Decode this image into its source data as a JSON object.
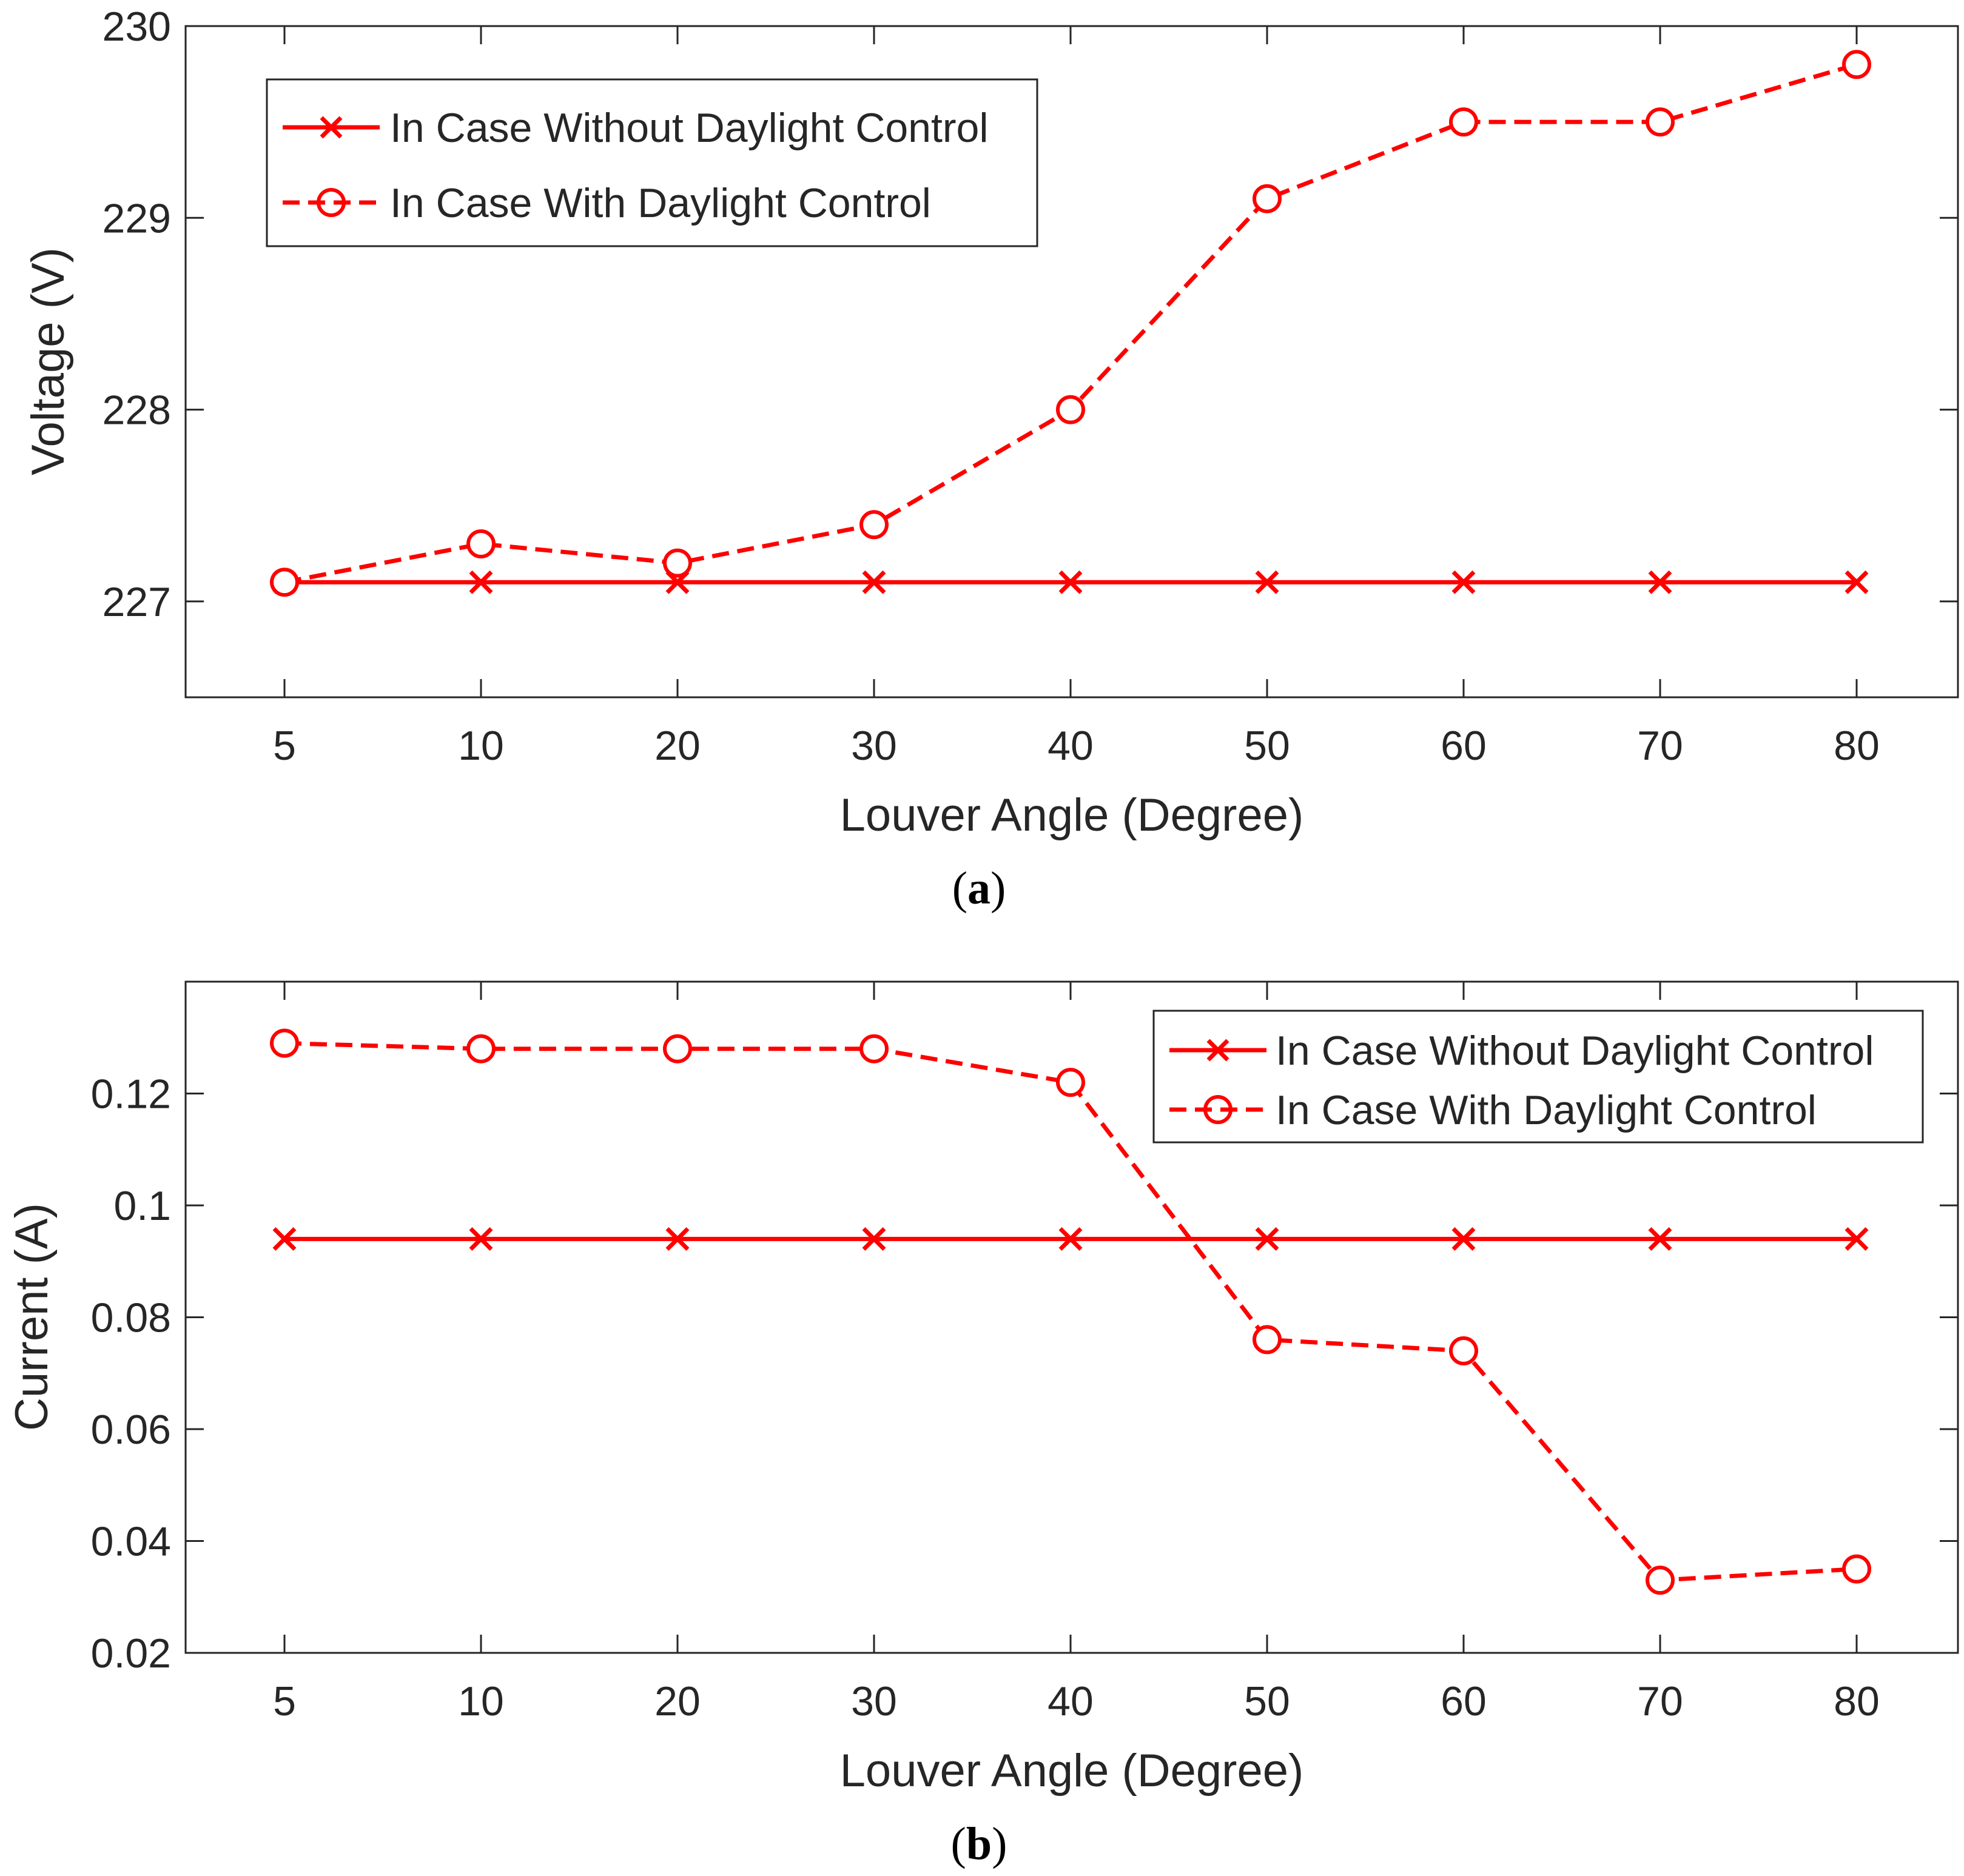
{
  "colors": {
    "series": "#ff0000",
    "axis": "#262626",
    "text": "#262626",
    "background": "#ffffff"
  },
  "chart_data": [
    {
      "type": "line",
      "caption_label": "a",
      "categories": [
        "5",
        "10",
        "20",
        "30",
        "40",
        "50",
        "60",
        "70",
        "80"
      ],
      "xlabel": "Louver Angle (Degree)",
      "ylabel": "Voltage (V)",
      "ylim": [
        226.5,
        230
      ],
      "yticks": [
        227,
        228,
        229,
        230
      ],
      "ytick_labels": [
        "227",
        "228",
        "229",
        "230"
      ],
      "legend_position": "top-left",
      "series": [
        {
          "name": "In Case Without Daylight Control",
          "line_style": "solid",
          "marker": "x-icon",
          "values": [
            227.1,
            227.1,
            227.1,
            227.1,
            227.1,
            227.1,
            227.1,
            227.1,
            227.1
          ]
        },
        {
          "name": "In Case With Daylight Control",
          "line_style": "dashed",
          "marker": "circle-icon",
          "values": [
            227.1,
            227.3,
            227.2,
            227.4,
            228.0,
            229.1,
            229.5,
            229.5,
            229.8
          ]
        }
      ]
    },
    {
      "type": "line",
      "caption_label": "b",
      "categories": [
        "5",
        "10",
        "20",
        "30",
        "40",
        "50",
        "60",
        "70",
        "80"
      ],
      "xlabel": "Louver Angle (Degree)",
      "ylabel": "Current (A)",
      "ylim": [
        0.02,
        0.14
      ],
      "yticks": [
        0.02,
        0.04,
        0.06,
        0.08,
        0.1,
        0.12
      ],
      "ytick_labels": [
        "0.02",
        "0.04",
        "0.06",
        "0.08",
        "0.1",
        "0.12"
      ],
      "legend_position": "top-right",
      "series": [
        {
          "name": "In Case Without Daylight Control",
          "line_style": "solid",
          "marker": "x-icon",
          "values": [
            0.094,
            0.094,
            0.094,
            0.094,
            0.094,
            0.094,
            0.094,
            0.094,
            0.094
          ]
        },
        {
          "name": "In Case With Daylight Control",
          "line_style": "dashed",
          "marker": "circle-icon",
          "values": [
            0.129,
            0.128,
            0.128,
            0.128,
            0.122,
            0.076,
            0.074,
            0.033,
            0.035
          ]
        }
      ]
    }
  ]
}
